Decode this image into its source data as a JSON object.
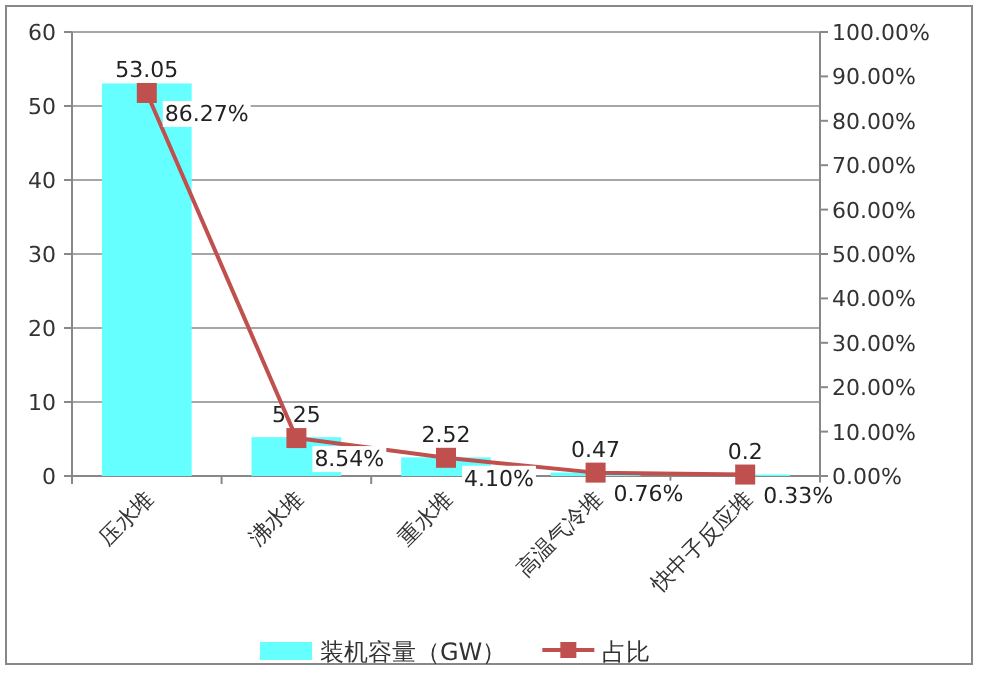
{
  "chart_data": {
    "type": "bar",
    "categories": [
      "压水堆",
      "沸水堆",
      "重水堆",
      "高温气冷堆",
      "快中子反应堆"
    ],
    "series": [
      {
        "name": "装机容量（GW）",
        "color": "#66ffff",
        "values": [
          53.05,
          5.25,
          2.52,
          0.47,
          0.2
        ],
        "value_labels": [
          "53.05",
          "5.25",
          "2.52",
          "0.47",
          "0.2"
        ]
      },
      {
        "name": "占比",
        "type": "line",
        "axis": "y2",
        "color": "#c0504d",
        "marker": "square",
        "values": [
          86.27,
          8.54,
          4.1,
          0.76,
          0.33
        ],
        "value_labels": [
          "86.27%",
          "8.54%",
          "4.10%",
          "0.76%",
          "0.33%"
        ]
      }
    ],
    "ylim": [
      0,
      60
    ],
    "yticks": [
      0,
      10,
      20,
      30,
      40,
      50,
      60
    ],
    "y2lim": [
      0,
      100
    ],
    "y2ticks": [
      {
        "value": 0,
        "label": "0.00%"
      },
      {
        "value": 10,
        "label": "10.00%"
      },
      {
        "value": 20,
        "label": "20.00%"
      },
      {
        "value": 30,
        "label": "30.00%"
      },
      {
        "value": 40,
        "label": "40.00%"
      },
      {
        "value": 50,
        "label": "50.00%"
      },
      {
        "value": 60,
        "label": "60.00%"
      },
      {
        "value": 70,
        "label": "70.00%"
      },
      {
        "value": 80,
        "label": "80.00%"
      },
      {
        "value": 90,
        "label": "90.00%"
      },
      {
        "value": 100,
        "label": "100.00%"
      }
    ],
    "grid": "y",
    "legend": "bottom"
  }
}
